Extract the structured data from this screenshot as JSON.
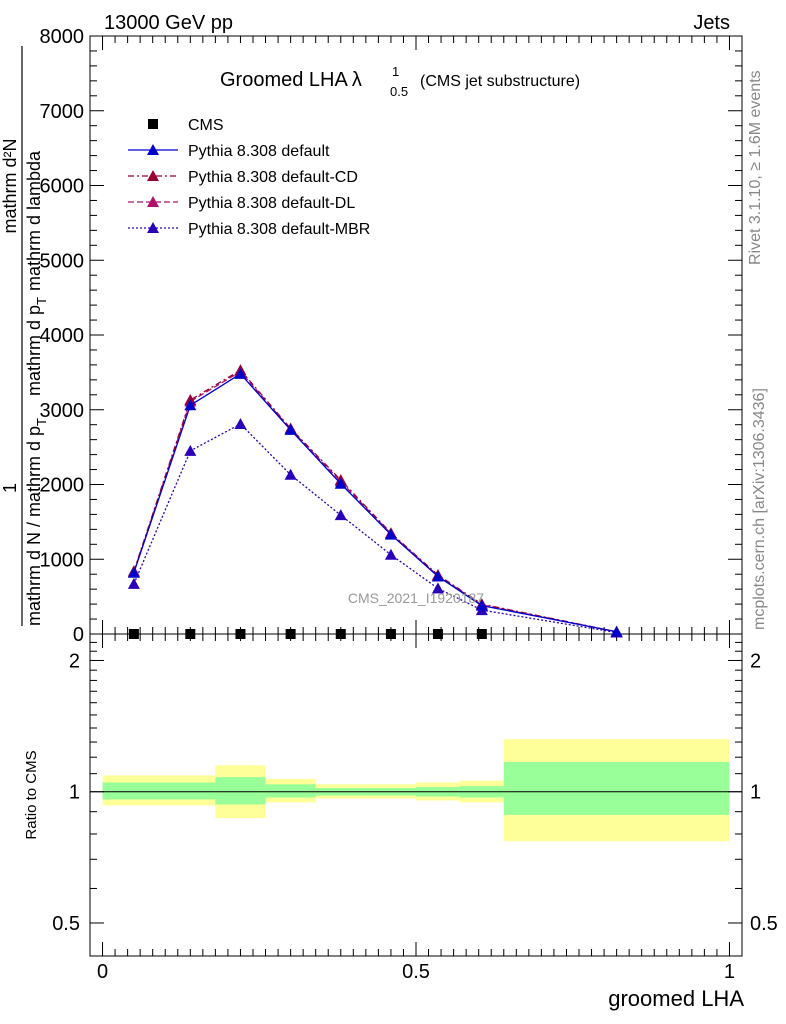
{
  "header": {
    "left": "13000 GeV pp",
    "right": "Jets"
  },
  "side_text": {
    "rivet": "Rivet 3.1.10, ≥ 1.6M events",
    "mcplots": "mcplots.cern.ch [arXiv:1306.3436]"
  },
  "watermark": "CMS_2021_I1920187",
  "chart_data": {
    "type": "line",
    "title_main": "Groomed LHA",
    "title_lambda": "λ",
    "title_sup": "1",
    "title_sub": "0.5",
    "title_note": "(CMS jet substructure)",
    "xlabel": "groomed LHA",
    "ylabel": {
      "num_left": "1",
      "num_right": "mathrm d²N",
      "den_left": "mathrm d N / mathrm d p",
      "den_left_sub": "T",
      "den_right": "mathrm d p",
      "den_right_sub": "T",
      "den_right_tail": "mathrm d lambda"
    },
    "xlim": [
      -0.02,
      1.02
    ],
    "ylim": [
      0,
      8000
    ],
    "yticks": [
      0,
      1000,
      2000,
      3000,
      4000,
      5000,
      6000,
      7000,
      8000
    ],
    "ytick_labels": [
      "0",
      "1000",
      "2000",
      "3000",
      "4000",
      "5000",
      "6000",
      "7000",
      "8000"
    ],
    "xticks": [
      0,
      0.5,
      1
    ],
    "xtick_labels": [
      "0",
      "0.5",
      "1"
    ],
    "legend_position": "top-left",
    "data_series": {
      "name": "CMS",
      "x": [
        0.05,
        0.14,
        0.22,
        0.3,
        0.38,
        0.46,
        0.535,
        0.605
      ],
      "y": [
        0,
        0,
        0,
        0,
        0,
        0,
        0,
        0
      ],
      "color": "#000000",
      "marker": "square"
    },
    "series": [
      {
        "name": "Pythia 8.308 default",
        "color": "#0000cc",
        "dash": "solid",
        "x": [
          0.05,
          0.14,
          0.22,
          0.3,
          0.38,
          0.46,
          0.535,
          0.605,
          0.82
        ],
        "y": [
          820,
          3060,
          3480,
          2730,
          2010,
          1330,
          770,
          380,
          30
        ]
      },
      {
        "name": "Pythia 8.308 default-CD",
        "color": "#990033",
        "dash": "dashdot",
        "x": [
          0.05,
          0.14,
          0.22,
          0.3,
          0.38,
          0.46,
          0.535,
          0.605,
          0.82
        ],
        "y": [
          840,
          3130,
          3530,
          2750,
          2060,
          1350,
          790,
          400,
          30
        ]
      },
      {
        "name": "Pythia 8.308 default-DL",
        "color": "#b0106a",
        "dash": "dashed",
        "x": [
          0.05,
          0.14,
          0.22,
          0.3,
          0.38,
          0.46,
          0.535,
          0.605,
          0.82
        ],
        "y": [
          830,
          3110,
          3510,
          2740,
          2040,
          1340,
          780,
          390,
          30
        ]
      },
      {
        "name": "Pythia 8.308 default-MBR",
        "color": "#2a00b8",
        "dash": "dotted",
        "x": [
          0.05,
          0.14,
          0.22,
          0.3,
          0.38,
          0.46,
          0.535,
          0.605,
          0.82
        ],
        "y": [
          670,
          2450,
          2810,
          2130,
          1590,
          1060,
          610,
          320,
          20
        ]
      }
    ],
    "ratio": {
      "ylabel": "Ratio to CMS",
      "ylim": [
        0.42,
        2.3
      ],
      "log": true,
      "yticks": [
        0.5,
        1,
        2
      ],
      "ytick_labels": [
        "0.5",
        "1",
        "2"
      ],
      "bands": [
        {
          "x0": 0.0,
          "x1": 0.18,
          "inner": [
            0.96,
            1.05
          ],
          "outer": [
            0.93,
            1.09
          ]
        },
        {
          "x0": 0.18,
          "x1": 0.26,
          "inner": [
            0.935,
            1.08
          ],
          "outer": [
            0.87,
            1.15
          ]
        },
        {
          "x0": 0.26,
          "x1": 0.34,
          "inner": [
            0.97,
            1.04
          ],
          "outer": [
            0.945,
            1.07
          ]
        },
        {
          "x0": 0.34,
          "x1": 0.42,
          "inner": [
            0.98,
            1.02
          ],
          "outer": [
            0.965,
            1.04
          ]
        },
        {
          "x0": 0.42,
          "x1": 0.5,
          "inner": [
            0.98,
            1.02
          ],
          "outer": [
            0.965,
            1.04
          ]
        },
        {
          "x0": 0.5,
          "x1": 0.57,
          "inner": [
            0.975,
            1.025
          ],
          "outer": [
            0.955,
            1.05
          ]
        },
        {
          "x0": 0.57,
          "x1": 0.64,
          "inner": [
            0.97,
            1.03
          ],
          "outer": [
            0.945,
            1.06
          ]
        },
        {
          "x0": 0.64,
          "x1": 1.0,
          "inner": [
            0.885,
            1.17
          ],
          "outer": [
            0.77,
            1.32
          ]
        }
      ],
      "inner_color": "#99ff99",
      "outer_color": "#ffff99"
    }
  }
}
